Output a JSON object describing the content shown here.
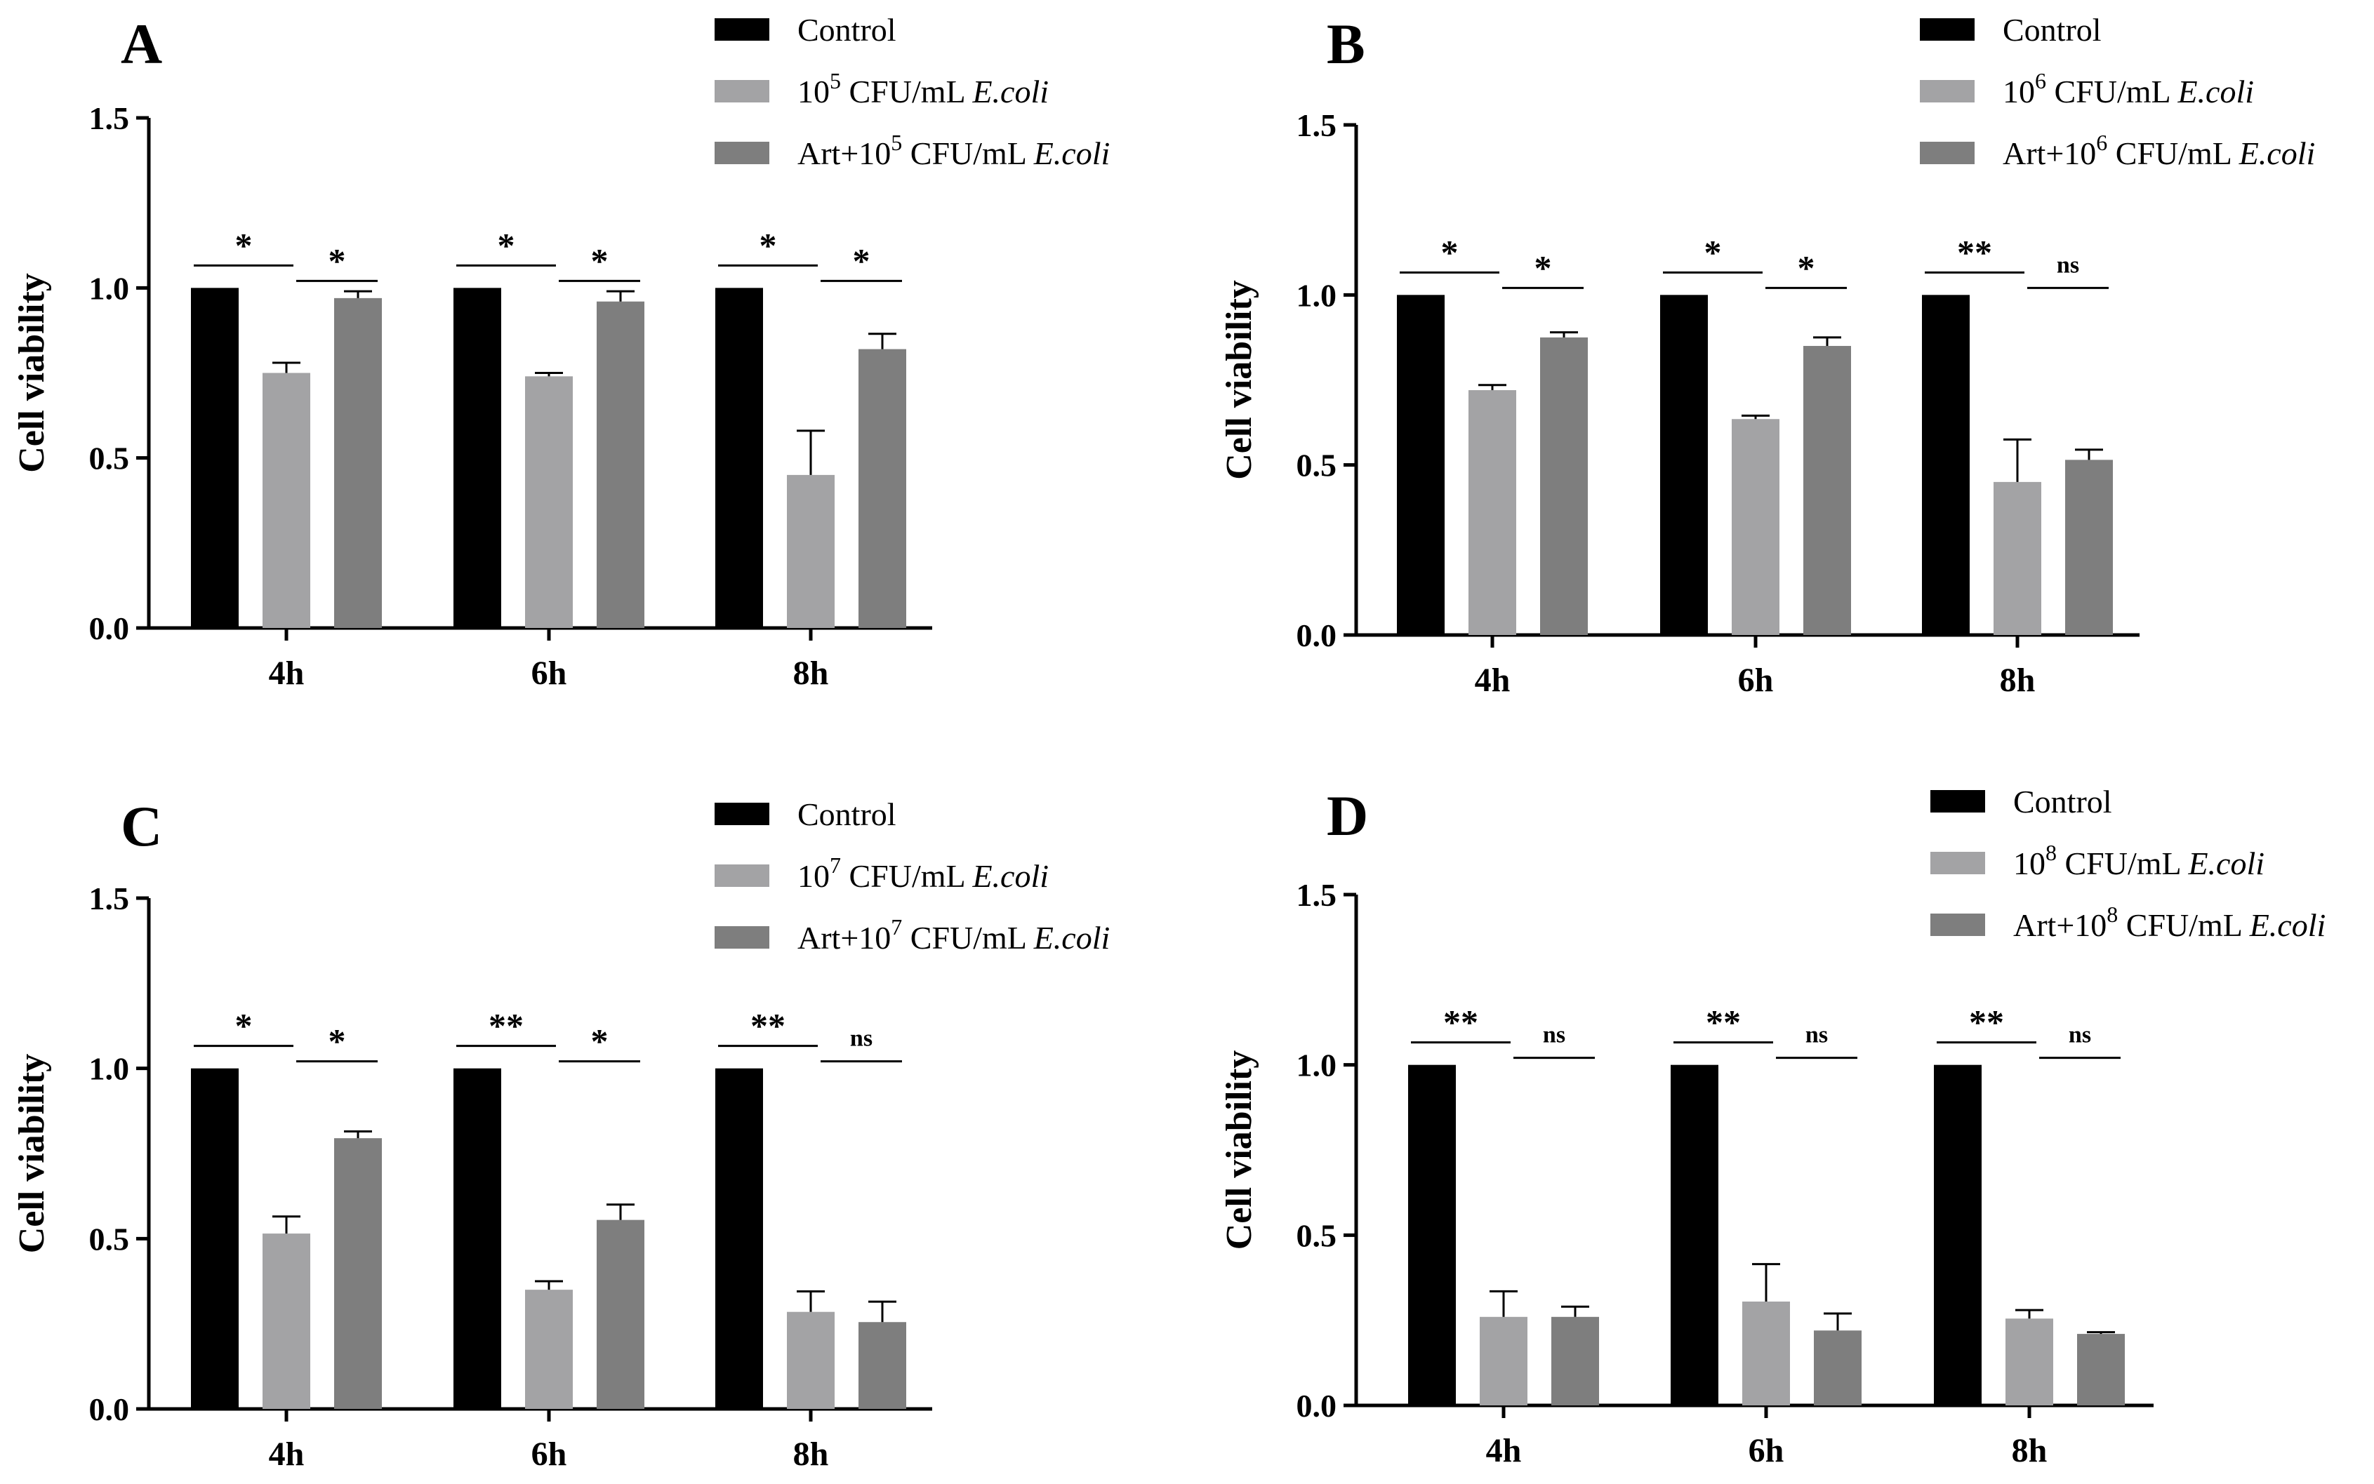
{
  "colors": {
    "control": "#000000",
    "ecoli": "#a3a3a5",
    "art": "#7e7e7e",
    "axis": "#000000"
  },
  "chart_data": [
    {
      "panel_label": "A",
      "type": "bar",
      "ylabel": "Cell viability",
      "ylim": [
        0,
        1.5
      ],
      "yticks": [
        "0.0",
        "0.5",
        "1.0",
        "1.5"
      ],
      "categories": [
        "4h",
        "6h",
        "8h"
      ],
      "legend": [
        {
          "pre": "Control",
          "sup": "",
          "mid": "",
          "it": ""
        },
        {
          "pre": "10",
          "sup": "5",
          "mid": " CFU/mL ",
          "it": "E.coli"
        },
        {
          "pre": "Art+10",
          "sup": "5",
          "mid": " CFU/mL ",
          "it": "E.coli"
        }
      ],
      "series": [
        {
          "name": "Control",
          "values": [
            1.0,
            1.0,
            1.0
          ],
          "errors": [
            0,
            0,
            0
          ]
        },
        {
          "name": "10^5 CFU/mL E.coli",
          "values": [
            0.75,
            0.74,
            0.45
          ],
          "errors": [
            0.03,
            0.01,
            0.13
          ]
        },
        {
          "name": "Art+10^5 CFU/mL E.coli",
          "values": [
            0.97,
            0.96,
            0.82
          ],
          "errors": [
            0.02,
            0.03,
            0.045
          ]
        }
      ],
      "significance": [
        [
          "*",
          "*"
        ],
        [
          "*",
          "*"
        ],
        [
          "*",
          "*"
        ]
      ]
    },
    {
      "panel_label": "B",
      "type": "bar",
      "ylabel": "Cell viability",
      "ylim": [
        0,
        1.5
      ],
      "yticks": [
        "0.0",
        "0.5",
        "1.0",
        "1.5"
      ],
      "categories": [
        "4h",
        "6h",
        "8h"
      ],
      "legend": [
        {
          "pre": "Control",
          "sup": "",
          "mid": "",
          "it": ""
        },
        {
          "pre": "10",
          "sup": "6",
          "mid": " CFU/mL ",
          "it": "E.coli"
        },
        {
          "pre": "Art+10",
          "sup": "6",
          "mid": " CFU/mL ",
          "it": "E.coli"
        }
      ],
      "series": [
        {
          "name": "Control",
          "values": [
            1.0,
            1.0,
            1.0
          ],
          "errors": [
            0,
            0,
            0
          ]
        },
        {
          "name": "10^6 CFU/mL E.coli",
          "values": [
            0.72,
            0.635,
            0.45
          ],
          "errors": [
            0.015,
            0.01,
            0.125
          ]
        },
        {
          "name": "Art+10^6 CFU/mL E.coli",
          "values": [
            0.875,
            0.85,
            0.515
          ],
          "errors": [
            0.015,
            0.025,
            0.03
          ]
        }
      ],
      "significance": [
        [
          "*",
          "*"
        ],
        [
          "*",
          "*"
        ],
        [
          "**",
          "ns"
        ]
      ]
    },
    {
      "panel_label": "C",
      "type": "bar",
      "ylabel": "Cell viability",
      "ylim": [
        0,
        1.5
      ],
      "yticks": [
        "0.0",
        "0.5",
        "1.0",
        "1.5"
      ],
      "categories": [
        "4h",
        "6h",
        "8h"
      ],
      "legend": [
        {
          "pre": "Control",
          "sup": "",
          "mid": "",
          "it": ""
        },
        {
          "pre": "10",
          "sup": "7",
          "mid": " CFU/mL ",
          "it": "E.coli"
        },
        {
          "pre": "Art+10",
          "sup": "7",
          "mid": " CFU/mL ",
          "it": "E.coli"
        }
      ],
      "series": [
        {
          "name": "Control",
          "values": [
            1.0,
            1.0,
            1.0
          ],
          "errors": [
            0,
            0,
            0
          ]
        },
        {
          "name": "10^7 CFU/mL E.coli",
          "values": [
            0.515,
            0.35,
            0.285
          ],
          "errors": [
            0.05,
            0.025,
            0.06
          ]
        },
        {
          "name": "Art+10^7 CFU/mL E.coli",
          "values": [
            0.795,
            0.555,
            0.255
          ],
          "errors": [
            0.02,
            0.045,
            0.06
          ]
        }
      ],
      "significance": [
        [
          "*",
          "*"
        ],
        [
          "**",
          "*"
        ],
        [
          "**",
          "ns"
        ]
      ]
    },
    {
      "panel_label": "D",
      "type": "bar",
      "ylabel": "Cell viability",
      "ylim": [
        0,
        1.5
      ],
      "yticks": [
        "0.0",
        "0.5",
        "1.0",
        "1.5"
      ],
      "categories": [
        "4h",
        "6h",
        "8h"
      ],
      "legend": [
        {
          "pre": "Control",
          "sup": "",
          "mid": "",
          "it": ""
        },
        {
          "pre": "10",
          "sup": "8",
          "mid": " CFU/mL ",
          "it": "E.coli"
        },
        {
          "pre": "Art+10",
          "sup": "8",
          "mid": " CFU/mL ",
          "it": "E.coli"
        }
      ],
      "series": [
        {
          "name": "Control",
          "values": [
            1.0,
            1.0,
            1.0
          ],
          "errors": [
            0,
            0,
            0
          ]
        },
        {
          "name": "10^8 CFU/mL E.coli",
          "values": [
            0.26,
            0.305,
            0.255
          ],
          "errors": [
            0.075,
            0.11,
            0.025
          ]
        },
        {
          "name": "Art+10^8 CFU/mL E.coli",
          "values": [
            0.26,
            0.22,
            0.21
          ],
          "errors": [
            0.03,
            0.05,
            0.005
          ]
        }
      ],
      "significance": [
        [
          "**",
          "ns"
        ],
        [
          "**",
          "ns"
        ],
        [
          "**",
          "ns"
        ]
      ]
    }
  ]
}
